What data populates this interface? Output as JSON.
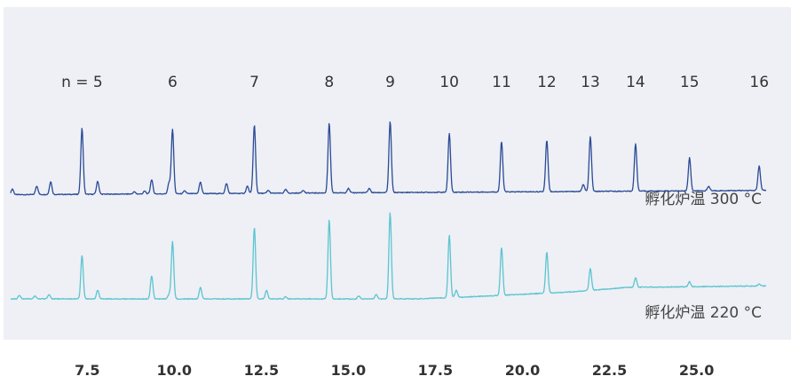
{
  "chart_data": {
    "type": "line",
    "xlim": [
      5.3,
      27.0
    ],
    "xticks": [
      "7.5",
      "10.0",
      "12.5",
      "15.0",
      "17.5",
      "20.0",
      "22.5",
      "25.0"
    ],
    "xtick_values": [
      7.5,
      10.0,
      12.5,
      15.0,
      17.5,
      20.0,
      22.5,
      25.0
    ],
    "grid": false,
    "background": "#eef0f5",
    "peak_labels": [
      {
        "text": "n = 5",
        "x": 7.35
      },
      {
        "text": "6",
        "x": 9.95
      },
      {
        "text": "7",
        "x": 12.3
      },
      {
        "text": "8",
        "x": 14.45
      },
      {
        "text": "9",
        "x": 16.2
      },
      {
        "text": "10",
        "x": 17.9
      },
      {
        "text": "11",
        "x": 19.4
      },
      {
        "text": "12",
        "x": 20.7
      },
      {
        "text": "13",
        "x": 21.95
      },
      {
        "text": "14",
        "x": 23.25
      },
      {
        "text": "15",
        "x": 24.8
      },
      {
        "text": "16",
        "x": 26.8
      }
    ],
    "series": [
      {
        "name": "孵化炉温 300 °C",
        "color": "#2b4a96",
        "offset": 1.45,
        "baseline_curve": [
          [
            5.3,
            0.0
          ],
          [
            27.0,
            0.06
          ]
        ],
        "peaks": [
          [
            5.35,
            0.08
          ],
          [
            6.05,
            0.12
          ],
          [
            6.45,
            0.18
          ],
          [
            7.35,
            0.92
          ],
          [
            7.8,
            0.18
          ],
          [
            8.85,
            0.03
          ],
          [
            9.15,
            0.04
          ],
          [
            9.35,
            0.2
          ],
          [
            9.85,
            0.15
          ],
          [
            9.95,
            0.9
          ],
          [
            10.3,
            0.04
          ],
          [
            10.75,
            0.16
          ],
          [
            11.5,
            0.14
          ],
          [
            12.1,
            0.1
          ],
          [
            12.3,
            0.95
          ],
          [
            12.7,
            0.04
          ],
          [
            13.2,
            0.05
          ],
          [
            13.7,
            0.04
          ],
          [
            14.45,
            0.97
          ],
          [
            15.0,
            0.06
          ],
          [
            15.6,
            0.06
          ],
          [
            16.2,
            0.99
          ],
          [
            17.9,
            0.82
          ],
          [
            19.4,
            0.7
          ],
          [
            20.7,
            0.72
          ],
          [
            21.75,
            0.1
          ],
          [
            21.95,
            0.76
          ],
          [
            23.25,
            0.66
          ],
          [
            24.8,
            0.46
          ],
          [
            25.35,
            0.06
          ],
          [
            26.8,
            0.34
          ]
        ]
      },
      {
        "name": "孵化炉温 220 °C",
        "color": "#5cc4d0",
        "offset": 0.0,
        "baseline_curve": [
          [
            5.3,
            0.0
          ],
          [
            17.0,
            0.0
          ],
          [
            19.0,
            0.04
          ],
          [
            21.5,
            0.1
          ],
          [
            23.0,
            0.16
          ],
          [
            25.0,
            0.17
          ],
          [
            27.0,
            0.18
          ]
        ],
        "peaks": [
          [
            5.55,
            0.05
          ],
          [
            6.0,
            0.04
          ],
          [
            6.4,
            0.06
          ],
          [
            7.35,
            0.6
          ],
          [
            7.8,
            0.12
          ],
          [
            9.35,
            0.32
          ],
          [
            9.85,
            0.06
          ],
          [
            9.95,
            0.8
          ],
          [
            10.75,
            0.16
          ],
          [
            12.3,
            1.0
          ],
          [
            12.65,
            0.12
          ],
          [
            13.2,
            0.03
          ],
          [
            14.45,
            1.1
          ],
          [
            15.3,
            0.04
          ],
          [
            15.8,
            0.06
          ],
          [
            16.2,
            1.2
          ],
          [
            17.9,
            0.87
          ],
          [
            18.1,
            0.1
          ],
          [
            19.4,
            0.67
          ],
          [
            20.7,
            0.57
          ],
          [
            21.95,
            0.3
          ],
          [
            23.25,
            0.13
          ],
          [
            24.8,
            0.07
          ],
          [
            26.8,
            0.03
          ]
        ]
      }
    ]
  }
}
